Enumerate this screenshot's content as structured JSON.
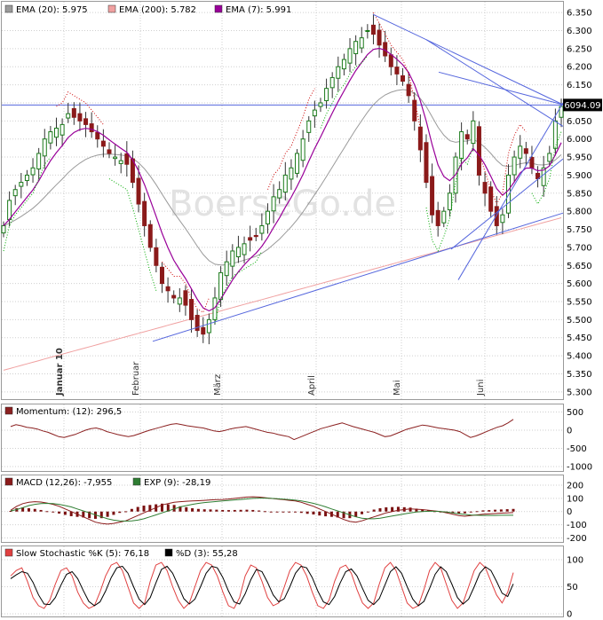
{
  "watermark": "BoerseGo.de",
  "last_price_label": "6094.09",
  "colors": {
    "ema20": "#9a9a9a",
    "ema200": "#f0a0a0",
    "ema7": "#990099",
    "trendline": "#5566dd",
    "momentum": "#8b2020",
    "macd_line": "#8b1a1a",
    "macd_signal": "#2e7d32",
    "stoch_k": "#e04040",
    "stoch_d": "#000000",
    "grid": "#cfcfcf",
    "bg": "#ffffff"
  },
  "chart_data": [
    {
      "type": "candlestick",
      "title": "",
      "legend": [
        {
          "label": "EMA (20): 5.975",
          "color": "#9a9a9a"
        },
        {
          "label": "EMA (200): 5.782",
          "color": "#f0a0a0"
        },
        {
          "label": "EMA (7): 5.991",
          "color": "#990099"
        }
      ],
      "y_ticks": [
        "6.350",
        "6.300",
        "6.250",
        "6.200",
        "6.150",
        "6.100",
        "6.050",
        "6.000",
        "5.950",
        "5.900",
        "5.850",
        "5.800",
        "5.750",
        "5.700",
        "5.650",
        "5.600",
        "5.550",
        "5.500",
        "5.450",
        "5.400",
        "5.350",
        "5.300"
      ],
      "ylim": [
        5280,
        6365
      ],
      "x_labels": [
        "Januar 10",
        "Februar",
        "März",
        "April",
        "Mai",
        "Juni"
      ],
      "horizontal_line": 6094.09,
      "grid": true,
      "series_close": [
        5760,
        5830,
        5860,
        5880,
        5900,
        5920,
        5960,
        6000,
        6020,
        6030,
        6040,
        6070,
        6060,
        6050,
        6040,
        6020,
        6000,
        5980,
        5960,
        5950,
        5940,
        5930,
        5880,
        5820,
        5760,
        5700,
        5650,
        5600,
        5580,
        5560,
        5560,
        5540,
        5500,
        5470,
        5460,
        5500,
        5560,
        5630,
        5660,
        5690,
        5700,
        5710,
        5720,
        5730,
        5760,
        5800,
        5840,
        5860,
        5900,
        5920,
        5960,
        6000,
        6050,
        6080,
        6100,
        6140,
        6170,
        6200,
        6220,
        6250,
        6270,
        6280,
        6300,
        6290,
        6260,
        6230,
        6200,
        6180,
        6160,
        6120,
        6050,
        5970,
        5880,
        5790,
        5760,
        5800,
        5850,
        5950,
        6020,
        6000,
        6050,
        5900,
        5850,
        5800,
        5760,
        5790,
        5900,
        5950,
        5980,
        5960,
        5920,
        5890,
        5920,
        5960,
        6050,
        6090
      ]
    },
    {
      "type": "line",
      "legend": [
        {
          "label": "Momentum: (12): 296,5",
          "color": "#8b2020"
        }
      ],
      "y_ticks": [
        "500",
        "0",
        "-500",
        "-1000"
      ],
      "ylim": [
        -1050,
        560
      ],
      "values": [
        100,
        150,
        120,
        80,
        60,
        30,
        -20,
        -60,
        -120,
        -180,
        -200,
        -160,
        -120,
        -60,
        0,
        40,
        60,
        20,
        -40,
        -80,
        -120,
        -150,
        -180,
        -150,
        -100,
        -50,
        0,
        40,
        80,
        120,
        160,
        180,
        150,
        120,
        100,
        80,
        60,
        20,
        -20,
        -40,
        -10,
        30,
        60,
        80,
        100,
        60,
        20,
        -20,
        -60,
        -80,
        -120,
        -150,
        -180,
        -260,
        -200,
        -140,
        -80,
        -20,
        40,
        80,
        120,
        160,
        200,
        150,
        100,
        60,
        20,
        -20,
        -60,
        -120,
        -180,
        -160,
        -100,
        -40,
        20,
        60,
        100,
        140,
        120,
        90,
        60,
        40,
        20,
        0,
        -40,
        -120,
        -200,
        -160,
        -100,
        -40,
        20,
        80,
        120,
        200,
        296.5
      ]
    },
    {
      "type": "line",
      "legend": [
        {
          "label": "MACD (12,26): -7,955",
          "color": "#8b1a1a"
        },
        {
          "label": "EXP (9): -28,19",
          "color": "#2e7d32"
        }
      ],
      "y_ticks": [
        "200",
        "100",
        "0",
        "-100",
        "-200"
      ],
      "ylim": [
        -210,
        220
      ],
      "macd": [
        10,
        40,
        60,
        70,
        75,
        72,
        65,
        55,
        40,
        20,
        0,
        -20,
        -40,
        -60,
        -80,
        -90,
        -95,
        -90,
        -80,
        -70,
        -50,
        -30,
        -10,
        10,
        30,
        50,
        60,
        70,
        75,
        78,
        80,
        82,
        85,
        88,
        90,
        92,
        95,
        100,
        105,
        110,
        112,
        110,
        105,
        100,
        95,
        90,
        85,
        80,
        70,
        55,
        40,
        20,
        0,
        -20,
        -40,
        -60,
        -75,
        -80,
        -70,
        -55,
        -40,
        -25,
        -10,
        0,
        10,
        15,
        20,
        18,
        15,
        10,
        5,
        0,
        -10,
        -20,
        -30,
        -35,
        -30,
        -25,
        -20,
        -18,
        -15,
        -12,
        -10,
        -8
      ],
      "signal": [
        5,
        15,
        30,
        45,
        55,
        60,
        62,
        60,
        55,
        45,
        35,
        20,
        5,
        -10,
        -25,
        -40,
        -55,
        -65,
        -70,
        -72,
        -70,
        -65,
        -55,
        -40,
        -25,
        -10,
        5,
        20,
        35,
        45,
        55,
        62,
        68,
        72,
        76,
        80,
        84,
        88,
        92,
        96,
        100,
        102,
        102,
        100,
        97,
        94,
        90,
        86,
        80,
        72,
        62,
        50,
        36,
        20,
        5,
        -10,
        -25,
        -40,
        -50,
        -55,
        -55,
        -50,
        -42,
        -34,
        -26,
        -18,
        -10,
        -4,
        0,
        2,
        2,
        0,
        -4,
        -10,
        -16,
        -22,
        -26,
        -28,
        -29,
        -29,
        -29,
        -28,
        -28,
        -28
      ]
    },
    {
      "type": "line",
      "legend": [
        {
          "label": "Slow Stochastic %K (5): 76,18",
          "color": "#e04040"
        },
        {
          "label": "%D (3): 55,28",
          "color": "#000000"
        }
      ],
      "y_ticks": [
        "100",
        "50",
        "0"
      ],
      "ylim": [
        0,
        105
      ],
      "k": [
        70,
        80,
        85,
        60,
        30,
        15,
        10,
        25,
        55,
        80,
        85,
        70,
        40,
        20,
        10,
        15,
        40,
        70,
        90,
        95,
        80,
        50,
        20,
        10,
        20,
        60,
        90,
        95,
        80,
        50,
        25,
        10,
        20,
        50,
        80,
        95,
        90,
        70,
        40,
        15,
        10,
        30,
        70,
        90,
        85,
        60,
        30,
        15,
        20,
        50,
        80,
        95,
        90,
        70,
        40,
        15,
        10,
        25,
        60,
        85,
        90,
        75,
        45,
        20,
        10,
        20,
        55,
        85,
        95,
        80,
        50,
        20,
        10,
        15,
        45,
        80,
        95,
        85,
        55,
        25,
        10,
        20,
        50,
        80,
        95,
        85,
        60,
        35,
        20,
        40,
        76.18
      ],
      "d": [
        65,
        72,
        78,
        75,
        58,
        35,
        18,
        17,
        30,
        53,
        73,
        78,
        65,
        43,
        23,
        15,
        22,
        42,
        67,
        85,
        88,
        75,
        50,
        27,
        17,
        30,
        57,
        82,
        88,
        75,
        52,
        28,
        18,
        27,
        50,
        75,
        88,
        85,
        67,
        42,
        22,
        18,
        37,
        63,
        82,
        78,
        58,
        35,
        22,
        28,
        50,
        75,
        88,
        85,
        67,
        42,
        22,
        17,
        32,
        57,
        78,
        83,
        70,
        47,
        25,
        17,
        28,
        53,
        78,
        87,
        75,
        50,
        27,
        15,
        23,
        47,
        73,
        87,
        78,
        55,
        30,
        18,
        27,
        50,
        75,
        87,
        80,
        60,
        38,
        32,
        55.28
      ]
    }
  ]
}
